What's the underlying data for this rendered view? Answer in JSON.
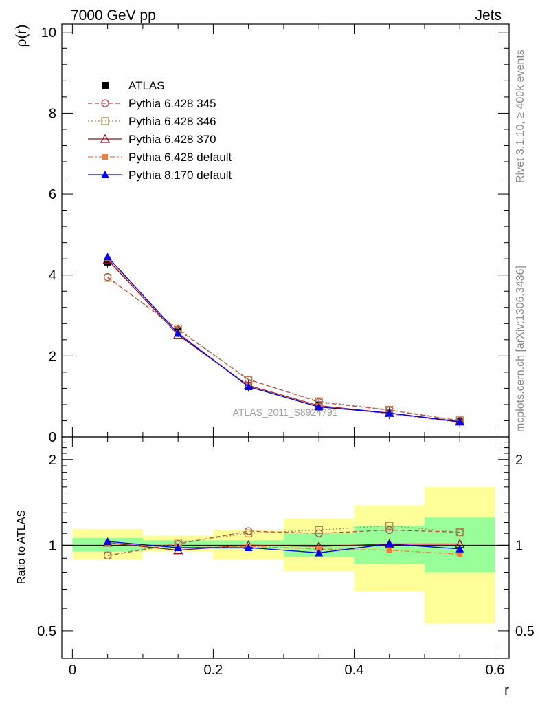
{
  "header": {
    "left": "7000 GeV pp",
    "right": "Jets"
  },
  "side_text": {
    "top": "Rivet 3.1.10, ≥ 400k events",
    "bottom": "mcplots.cern.ch [arXiv:1306.3436]"
  },
  "watermark": "ATLAS_2011_S8924791",
  "chart_data": [
    {
      "type": "line",
      "panel": "main",
      "ylabel": "ρ(r)",
      "xlabel": "r",
      "xlim": [
        -0.015,
        0.62
      ],
      "ylim": [
        0,
        10.2
      ],
      "x_ticks": [
        "0",
        "0.2",
        "0.4",
        "0.6"
      ],
      "y_ticks": [
        "0",
        "2",
        "4",
        "6",
        "8",
        "10"
      ],
      "x": [
        0.05,
        0.15,
        0.25,
        0.35,
        0.45,
        0.55
      ],
      "legend_position": "top-left",
      "series": [
        {
          "name": "ATLAS",
          "values": [
            4.32,
            2.62,
            1.27,
            0.79,
            0.59,
            0.38
          ],
          "color": "#000000",
          "marker": "filled-square",
          "line": "none"
        },
        {
          "name": "Pythia 6.428 345",
          "values": [
            3.95,
            2.65,
            1.42,
            0.86,
            0.66,
            0.4
          ],
          "color": "#b5464e",
          "marker": "open-circle",
          "line": "dashed"
        },
        {
          "name": "Pythia 6.428 346",
          "values": [
            3.93,
            2.68,
            1.4,
            0.88,
            0.67,
            0.41
          ],
          "color": "#a9884c",
          "marker": "open-square",
          "line": "dotted"
        },
        {
          "name": "Pythia 6.428 370",
          "values": [
            4.38,
            2.52,
            1.27,
            0.77,
            0.59,
            0.38
          ],
          "color": "#8a1020",
          "marker": "open-triangle",
          "line": "solid"
        },
        {
          "name": "Pythia 6.428 default",
          "values": [
            4.4,
            2.57,
            1.26,
            0.76,
            0.57,
            0.36
          ],
          "color": "#f07f3a",
          "marker": "filled-square-small",
          "line": "dashdot"
        },
        {
          "name": "Pythia 8.170 default",
          "values": [
            4.45,
            2.56,
            1.24,
            0.74,
            0.59,
            0.37
          ],
          "color": "#0000ee",
          "marker": "filled-triangle",
          "line": "solid"
        }
      ]
    },
    {
      "type": "line",
      "panel": "ratio",
      "ylabel": "Ratio to ATLAS",
      "xlabel": "r",
      "scale": "log",
      "xlim": [
        -0.015,
        0.62
      ],
      "ylim": [
        0.4,
        2.4
      ],
      "y_ticks": [
        "0.5",
        "1",
        "2"
      ],
      "band_edges": [
        0.0,
        0.1,
        0.2,
        0.3,
        0.4,
        0.5,
        0.6
      ],
      "band_inner": [
        [
          0.95,
          1.06
        ],
        [
          0.97,
          1.04
        ],
        [
          0.97,
          1.04
        ],
        [
          0.91,
          1.1
        ],
        [
          0.86,
          1.17
        ],
        [
          0.8,
          1.25
        ]
      ],
      "band_outer": [
        [
          0.89,
          1.14
        ],
        [
          0.95,
          1.08
        ],
        [
          0.89,
          1.13
        ],
        [
          0.81,
          1.24
        ],
        [
          0.69,
          1.38
        ],
        [
          0.53,
          1.6
        ]
      ],
      "x": [
        0.05,
        0.15,
        0.25,
        0.35,
        0.45,
        0.55
      ],
      "series": [
        {
          "name": "Pythia 6.428 345",
          "values": [
            0.92,
            1.01,
            1.12,
            1.1,
            1.13,
            1.11
          ],
          "color": "#b5464e",
          "marker": "open-circle",
          "line": "dashed"
        },
        {
          "name": "Pythia 6.428 346",
          "values": [
            0.92,
            1.02,
            1.1,
            1.13,
            1.17,
            1.11
          ],
          "color": "#a9884c",
          "marker": "open-square",
          "line": "dotted"
        },
        {
          "name": "Pythia 6.428 370",
          "values": [
            1.02,
            0.96,
            1.0,
            0.99,
            1.01,
            1.01
          ],
          "color": "#8a1020",
          "marker": "open-triangle",
          "line": "solid"
        },
        {
          "name": "Pythia 6.428 default",
          "values": [
            1.02,
            0.98,
            0.99,
            0.97,
            0.96,
            0.93
          ],
          "color": "#f07f3a",
          "marker": "filled-square-small",
          "line": "dashdot"
        },
        {
          "name": "Pythia 8.170 default",
          "values": [
            1.03,
            0.98,
            0.98,
            0.94,
            1.01,
            0.97
          ],
          "color": "#0000ee",
          "marker": "filled-triangle",
          "line": "solid"
        }
      ]
    }
  ]
}
